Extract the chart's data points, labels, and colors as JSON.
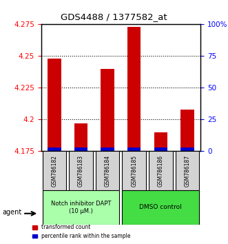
{
  "title": "GDS4488 / 1377582_at",
  "samples": [
    "GSM786182",
    "GSM786183",
    "GSM786184",
    "GSM786185",
    "GSM786186",
    "GSM786187"
  ],
  "red_values": [
    4.248,
    4.197,
    4.24,
    4.273,
    4.19,
    4.208
  ],
  "blue_values": [
    4.177,
    4.177,
    4.177,
    4.176,
    4.177,
    4.177
  ],
  "ymin": 4.175,
  "ymax": 4.275,
  "yticks_red": [
    4.175,
    4.2,
    4.225,
    4.25,
    4.275
  ],
  "yticks_blue": [
    0,
    25,
    50,
    75,
    100
  ],
  "ytick_labels_red": [
    "4.175",
    "4.2",
    "4.225",
    "4.25",
    "4.275"
  ],
  "ytick_labels_blue": [
    "0",
    "25",
    "50",
    "75",
    "100%"
  ],
  "bar_width": 0.5,
  "red_color": "#cc0000",
  "blue_color": "#0000cc",
  "group1_color": "#ccffcc",
  "group2_color": "#00cc00",
  "group1_label": "Notch inhibitor DAPT\n(10 μM.)",
  "group2_label": "DMSO control",
  "group1_samples": [
    0,
    1,
    2
  ],
  "group2_samples": [
    3,
    4,
    5
  ],
  "legend_red": "transformed count",
  "legend_blue": "percentile rank within the sample",
  "agent_label": "agent"
}
